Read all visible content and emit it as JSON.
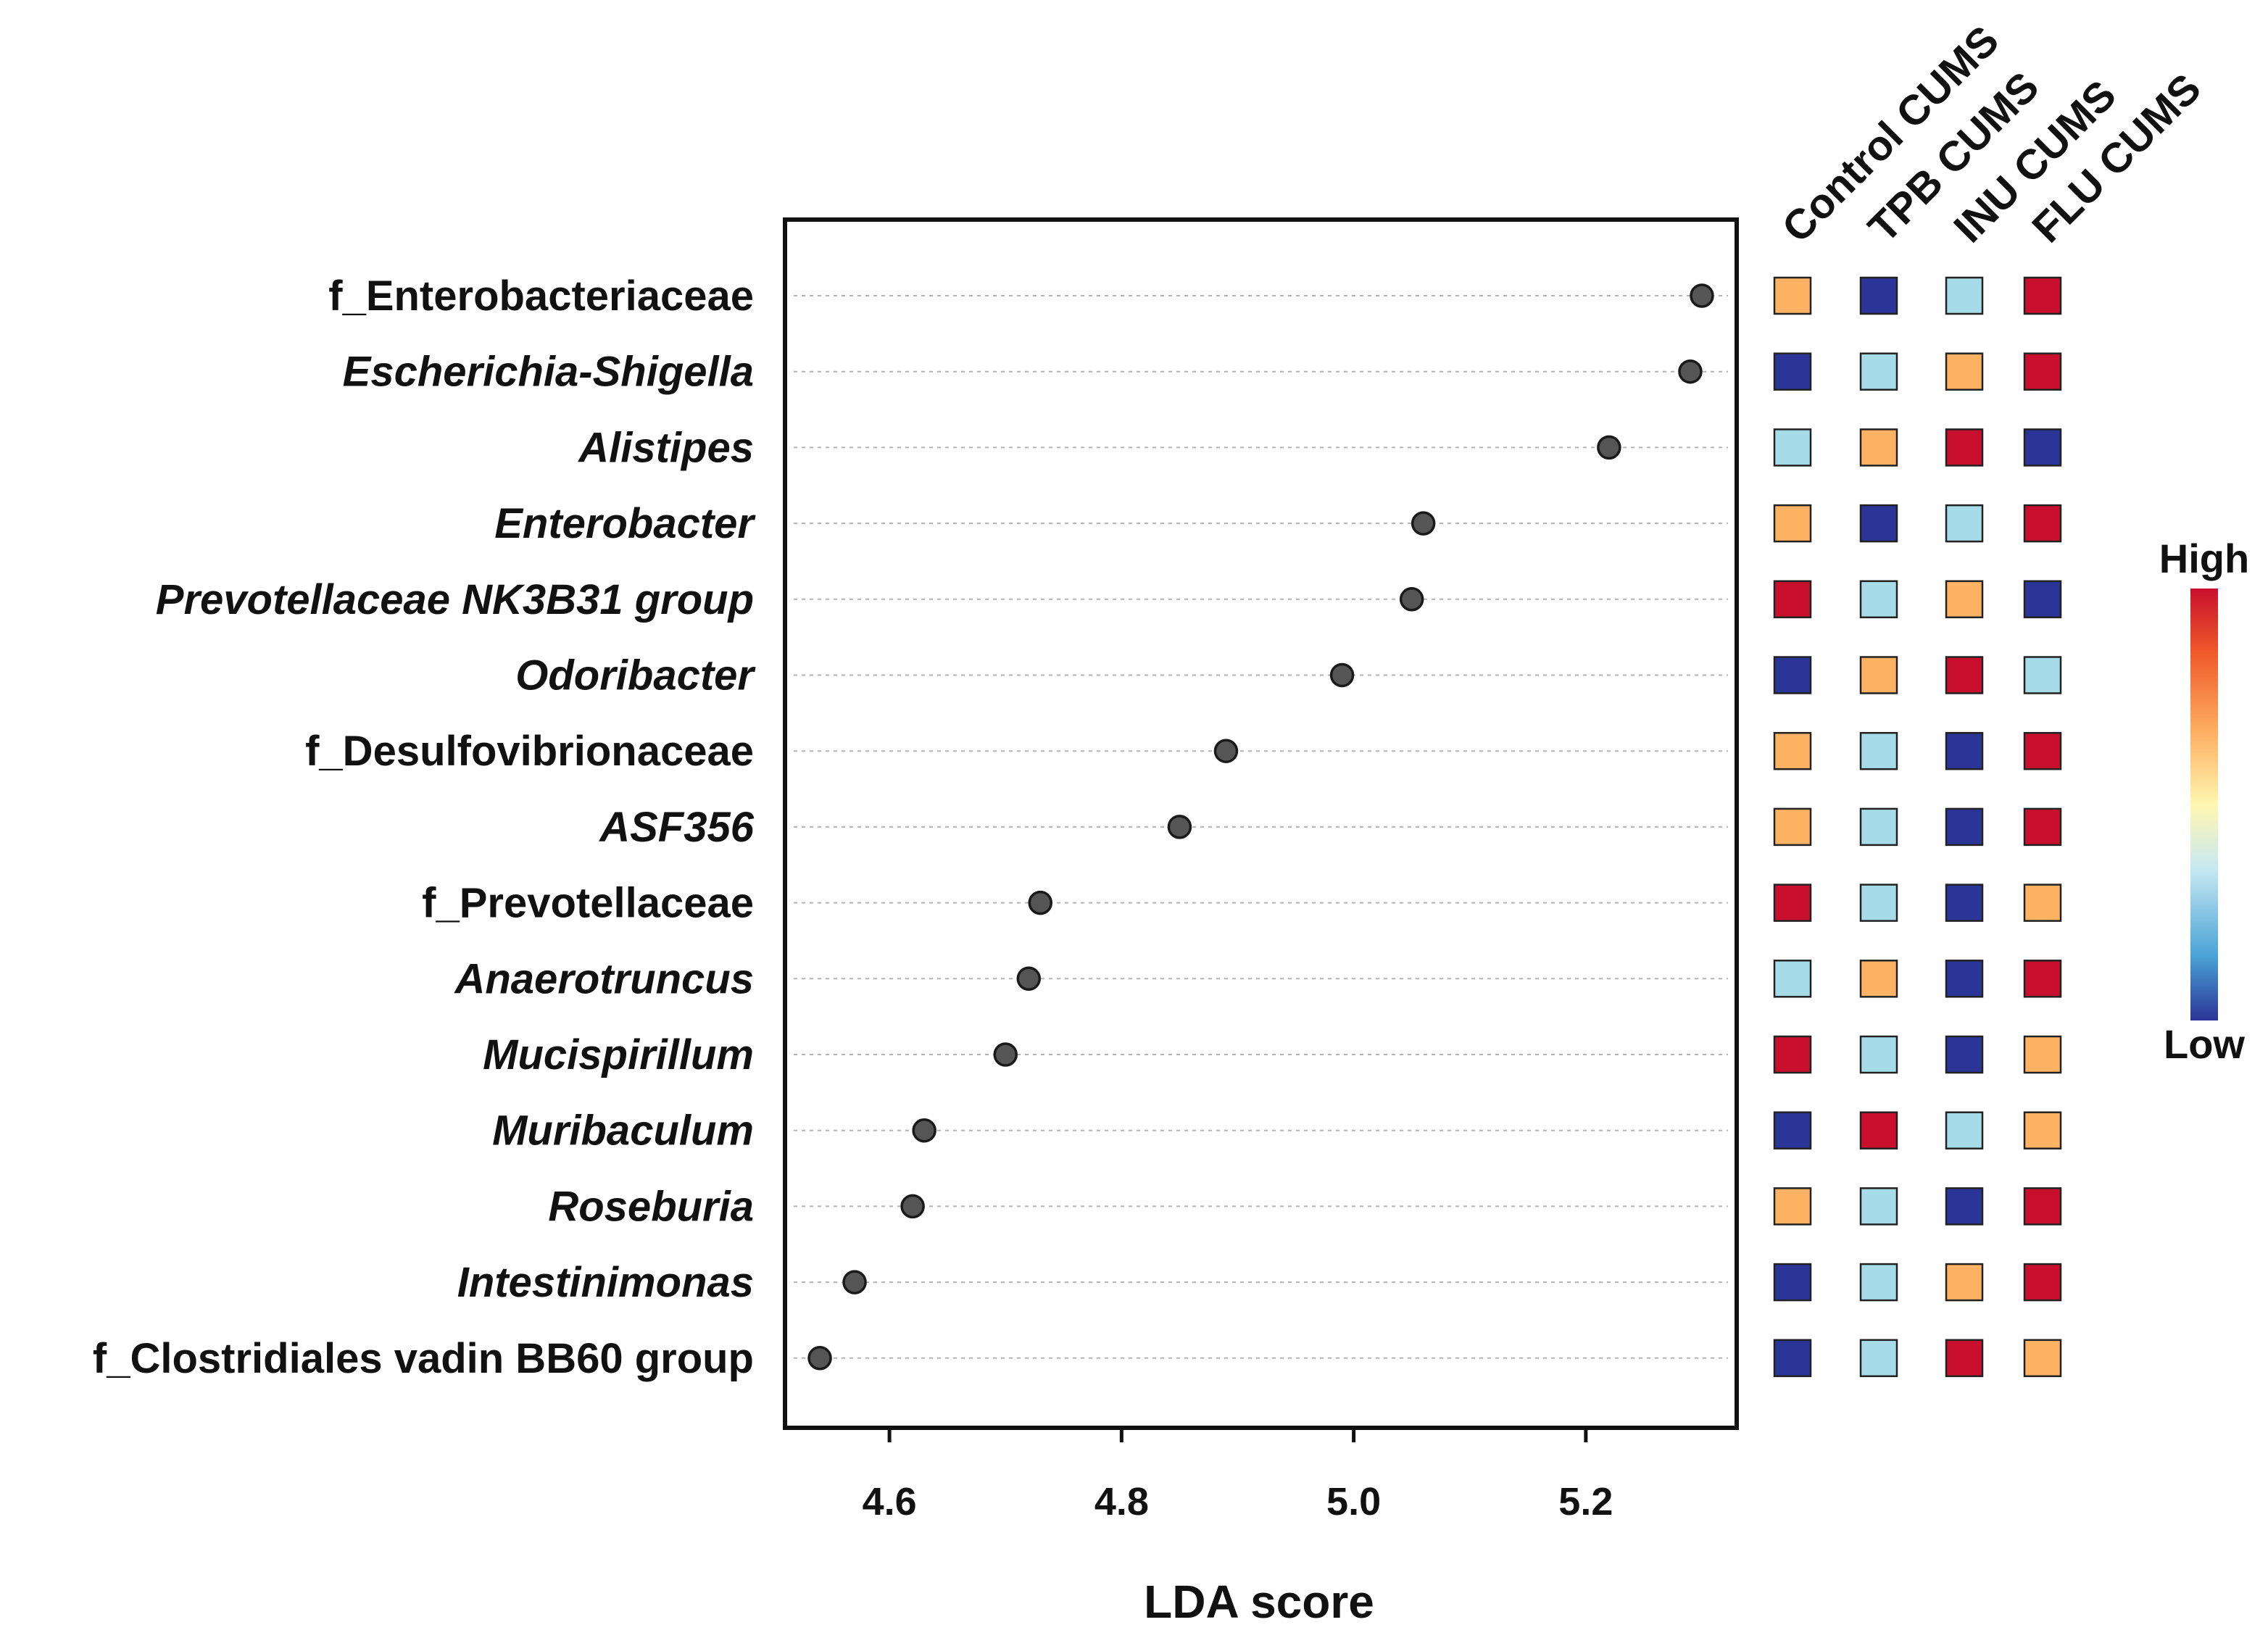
{
  "chart_data": {
    "type": "scatter",
    "subtype": "lefse-dot-plot-with-heatmap",
    "title": "",
    "xlabel": "LDA score",
    "ylabel": "",
    "xlim": [
      4.51,
      5.33
    ],
    "xticks": [
      4.6,
      4.8,
      5.0,
      5.2
    ],
    "xtick_labels": [
      "4.6",
      "4.8",
      "5.0",
      "5.2"
    ],
    "grid": "horizontal dashed guide lines per row",
    "taxa": [
      {
        "name": "f_Enterobacteriaceae",
        "italic": false,
        "lda": 5.3,
        "levels": [
          "mid-high",
          "low",
          "mid-low",
          "high"
        ]
      },
      {
        "name": "Escherichia-Shigella",
        "italic": true,
        "lda": 5.29,
        "levels": [
          "low",
          "mid-low",
          "mid-high",
          "high"
        ]
      },
      {
        "name": "Alistipes",
        "italic": true,
        "lda": 5.22,
        "levels": [
          "mid-low",
          "mid-high",
          "high",
          "low"
        ]
      },
      {
        "name": "Enterobacter",
        "italic": true,
        "lda": 5.06,
        "levels": [
          "mid-high",
          "low",
          "mid-low",
          "high"
        ]
      },
      {
        "name": "Prevotellaceae NK3B31 group",
        "italic": true,
        "lda": 5.05,
        "levels": [
          "high",
          "mid-low",
          "mid-high",
          "low"
        ]
      },
      {
        "name": "Odoribacter",
        "italic": true,
        "lda": 4.99,
        "levels": [
          "low",
          "mid-high",
          "high",
          "mid-low"
        ]
      },
      {
        "name": "f_Desulfovibrionaceae",
        "italic": false,
        "lda": 4.89,
        "levels": [
          "mid-high",
          "mid-low",
          "low",
          "high"
        ]
      },
      {
        "name": "ASF356",
        "italic": true,
        "lda": 4.85,
        "levels": [
          "mid-high",
          "mid-low",
          "low",
          "high"
        ]
      },
      {
        "name": "f_Prevotellaceae",
        "italic": false,
        "lda": 4.73,
        "levels": [
          "high",
          "mid-low",
          "low",
          "mid-high"
        ]
      },
      {
        "name": "Anaerotruncus",
        "italic": true,
        "lda": 4.72,
        "levels": [
          "mid-low",
          "mid-high",
          "low",
          "high"
        ]
      },
      {
        "name": "Mucispirillum",
        "italic": true,
        "lda": 4.7,
        "levels": [
          "high",
          "mid-low",
          "low",
          "mid-high"
        ]
      },
      {
        "name": "Muribaculum",
        "italic": true,
        "lda": 4.63,
        "levels": [
          "low",
          "high",
          "mid-low",
          "mid-high"
        ]
      },
      {
        "name": "Roseburia",
        "italic": true,
        "lda": 4.62,
        "levels": [
          "mid-high",
          "mid-low",
          "low",
          "high"
        ]
      },
      {
        "name": "Intestinimonas",
        "italic": true,
        "lda": 4.57,
        "levels": [
          "low",
          "mid-low",
          "mid-high",
          "high"
        ]
      },
      {
        "name": "f_Clostridiales vadin BB60 group",
        "italic": false,
        "lda": 4.54,
        "levels": [
          "low",
          "mid-low",
          "high",
          "mid-high"
        ]
      }
    ],
    "groups": [
      "Control CUMS",
      "TPB CUMS",
      "INU CUMS",
      "FLU CUMS"
    ],
    "level_colors": {
      "high": "#c8102e",
      "mid-high": "#fdb264",
      "mid-low": "#a6dbe8",
      "low": "#2b3497"
    },
    "legend": {
      "high_label": "High",
      "low_label": "Low",
      "placement": "right",
      "gradient": [
        "#c8102e",
        "#f05a2a",
        "#fdae61",
        "#fff7b0",
        "#c6e8f2",
        "#4aa3d6",
        "#2b3497"
      ]
    },
    "point_color": "#555555"
  }
}
